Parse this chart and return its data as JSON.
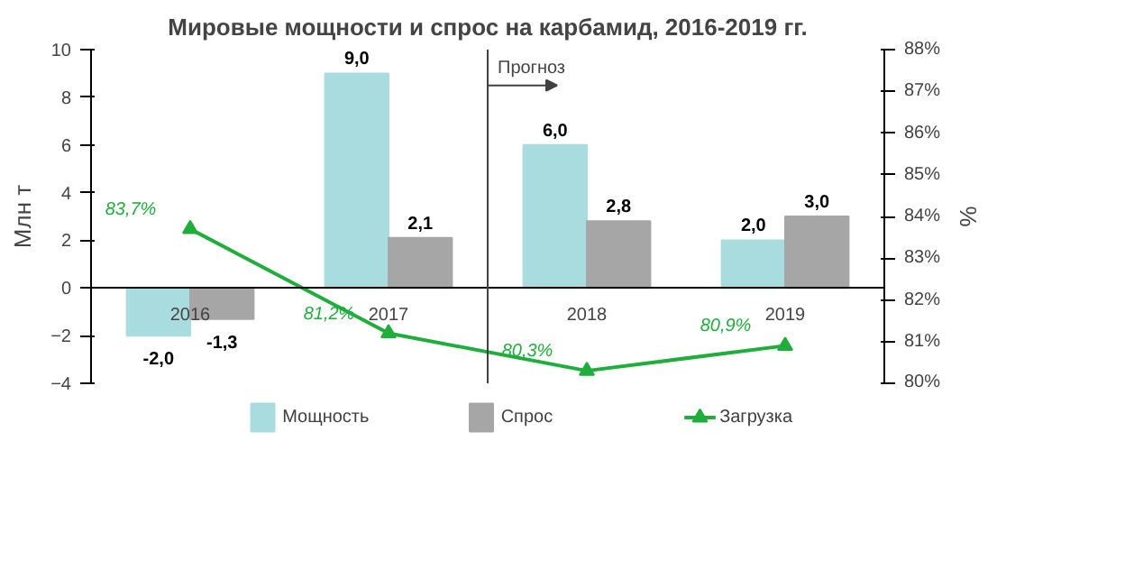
{
  "chart_data": {
    "type": "bar",
    "title": "Мировые мощности и спрос на карбамид, 2016-2019 гг.",
    "ylabel": "Млн т",
    "y2label": "%",
    "categories": [
      "2016",
      "2017",
      "2018",
      "2019"
    ],
    "series": [
      {
        "name": "Мощность",
        "color": "#a9dcdf",
        "values": [
          -2.0,
          9.0,
          6.0,
          2.0
        ],
        "value_labels": [
          "-2,0",
          "9,0",
          "6,0",
          "2,0"
        ]
      },
      {
        "name": "Спрос",
        "color": "#a6a6a6",
        "values": [
          -1.3,
          2.1,
          2.8,
          3.0
        ],
        "value_labels": [
          "-1,3",
          "2,1",
          "2,8",
          "3,0"
        ]
      },
      {
        "name": "Загрузка",
        "type": "line",
        "axis": "y2",
        "color": "#1fae3c",
        "marker": "triangle",
        "values": [
          83.7,
          81.2,
          80.3,
          80.9
        ],
        "value_labels": [
          "83,7%",
          "81,2%",
          "80,3%",
          "80,9%"
        ]
      }
    ],
    "ylim": [
      -4,
      10
    ],
    "yticks": [
      -4,
      -2,
      0,
      2,
      4,
      6,
      8,
      10
    ],
    "y2lim": [
      80,
      88
    ],
    "y2ticks": [
      {
        "value": 80,
        "label": "80%"
      },
      {
        "value": 81,
        "label": "81%"
      },
      {
        "value": 82,
        "label": "82%"
      },
      {
        "value": 83,
        "label": "83%"
      },
      {
        "value": 84,
        "label": "84%"
      },
      {
        "value": 85,
        "label": "85%"
      },
      {
        "value": 86,
        "label": "86%"
      },
      {
        "value": 87,
        "label": "87%"
      },
      {
        "value": 88,
        "label": "88%"
      }
    ],
    "annotations": [
      "Прогноз"
    ],
    "grid": false,
    "legend": "bottom"
  }
}
